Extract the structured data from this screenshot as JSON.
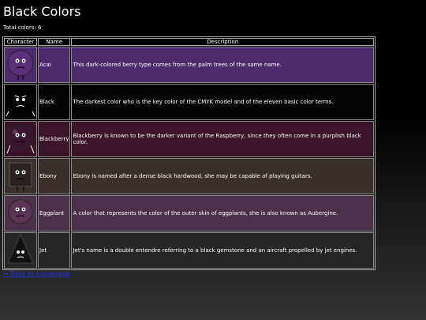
{
  "header": {
    "title": "Black Colors",
    "total": "Total colors: 6"
  },
  "table": {
    "columns": [
      "Character",
      "Name",
      "Description"
    ],
    "rows": [
      {
        "name": "Acai",
        "description": "This dark-colored berry type comes from the palm trees of the same name.",
        "color": "#4b2b6b"
      },
      {
        "name": "Black",
        "description": "The darkest color who is the key color of the CMYK model and of the eleven basic color terms.",
        "color": "#040404"
      },
      {
        "name": "Blackberry",
        "description": "Blackberry is known to be the darker variant of the Raspberry, since they often come in a purplish black color.",
        "color": "#3a1428"
      },
      {
        "name": "Ebony",
        "description": "Ebony is named after a dense black hardwood, she may be capable of playing guitars.",
        "color": "#3a2f2b"
      },
      {
        "name": "Eggplant",
        "description": "A color that represents the color of the outer skin of eggplants, she is also known as Aubergine.",
        "color": "#4a3049"
      },
      {
        "name": "Jet",
        "description": "Jet's name is a double entendre referring to a black gemstone and an aircraft propelled by jet engines.",
        "color": "#262626"
      }
    ]
  },
  "footer": {
    "link": "← Back to homepage"
  }
}
